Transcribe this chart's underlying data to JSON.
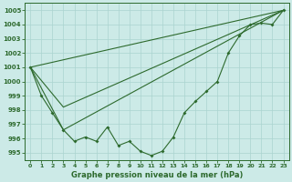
{
  "xlabel_label": "Graphe pression niveau de la mer (hPa)",
  "bg_color": "#cceae7",
  "grid_color": "#aad4d0",
  "line_color": "#2d6a2d",
  "xlim": [
    -0.5,
    23.5
  ],
  "ylim": [
    994.5,
    1005.5
  ],
  "xticks": [
    0,
    1,
    2,
    3,
    4,
    5,
    6,
    7,
    8,
    9,
    10,
    11,
    12,
    13,
    14,
    15,
    16,
    17,
    18,
    19,
    20,
    21,
    22,
    23
  ],
  "yticks": [
    995,
    996,
    997,
    998,
    999,
    1000,
    1001,
    1002,
    1003,
    1004,
    1005
  ],
  "line1": {
    "x": [
      0,
      1,
      2,
      3,
      4,
      5,
      6,
      7,
      8,
      9,
      10,
      11,
      12,
      13,
      14,
      15,
      16,
      17,
      18,
      19,
      20,
      21,
      22,
      23
    ],
    "y": [
      1001.0,
      999.0,
      997.8,
      996.6,
      995.8,
      996.1,
      995.8,
      996.8,
      995.5,
      995.8,
      995.1,
      994.8,
      995.1,
      996.1,
      997.8,
      998.6,
      999.3,
      1000.0,
      1002.0,
      1003.2,
      1004.0,
      1004.1,
      1004.0,
      1005.0
    ]
  },
  "line2": {
    "x": [
      0,
      23
    ],
    "y": [
      1001.0,
      1005.0
    ]
  },
  "line3": {
    "x": [
      0,
      3,
      23
    ],
    "y": [
      1001.0,
      998.2,
      1005.0
    ]
  },
  "line4": {
    "x": [
      0,
      3,
      23
    ],
    "y": [
      1001.0,
      996.6,
      1005.0
    ]
  }
}
